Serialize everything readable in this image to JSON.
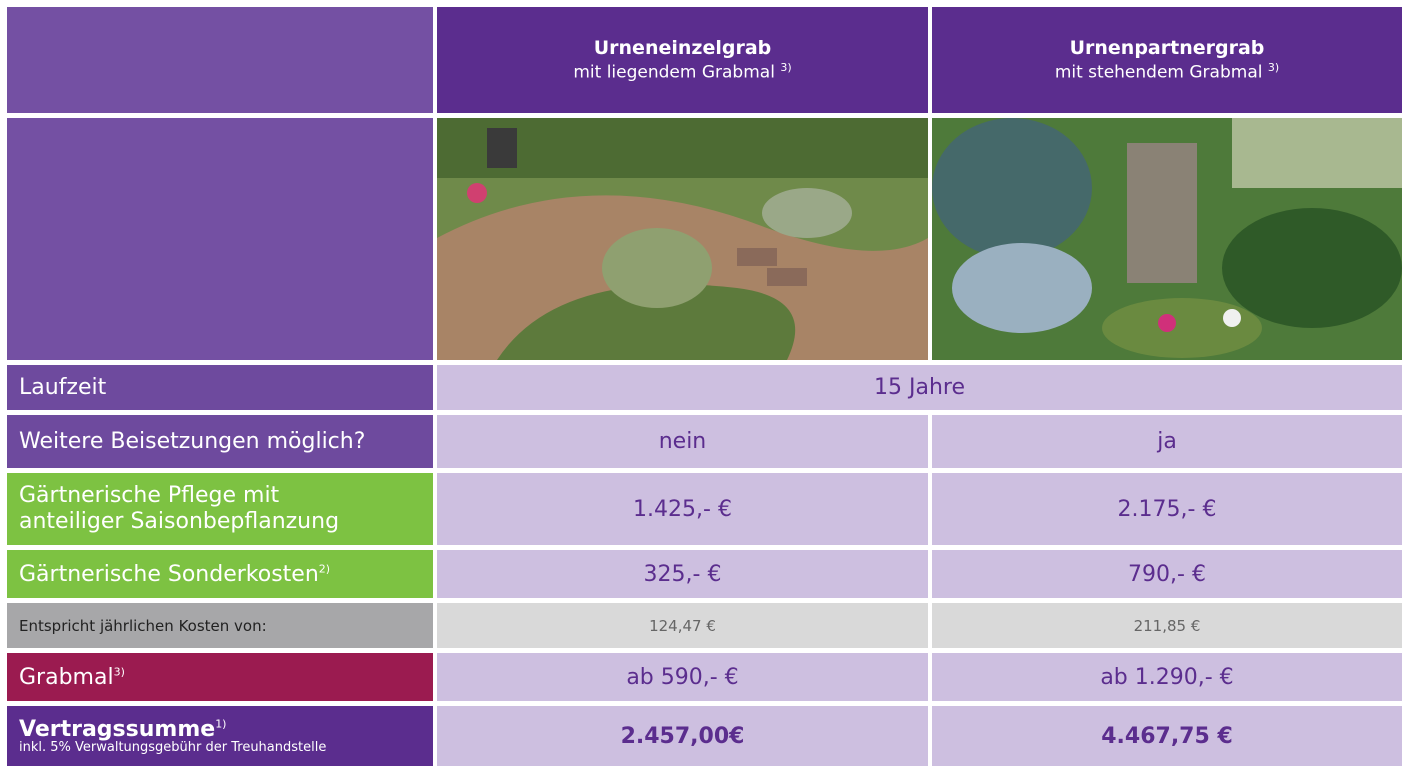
{
  "header": {
    "columns": [
      {
        "title": "Urneneinzelgrab",
        "subtitle": "mit liegendem Grabmal",
        "note": "3)"
      },
      {
        "title": "Urnenpartnergrab",
        "subtitle": "mit stehendem Grabmal",
        "note": "3)"
      }
    ]
  },
  "rows": [
    {
      "label": "Laufzeit",
      "value": "15 Jahre"
    },
    {
      "label": "Weitere Beisetzungen möglich?",
      "values": [
        "nein",
        "ja"
      ]
    },
    {
      "label": "Gärtnerische Pflege mit anteiliger Saisonbepflanzung",
      "values": [
        "1.425,- €",
        "2.175,- €"
      ]
    },
    {
      "label": "Gärtnerische Sonderkosten",
      "note": "2)",
      "values": [
        "325,- €",
        "790,- €"
      ]
    },
    {
      "label": "Entspricht jährlichen Kosten von:",
      "values": [
        "124,47 €",
        "211,85 €"
      ]
    },
    {
      "label": "Grabmal",
      "note": "3)",
      "values": [
        "ab 590,- €",
        "ab 1.290,- €"
      ]
    },
    {
      "label": "Vertragssumme",
      "note": "1)",
      "sublabel": "inkl. 5% Verwaltungsgebühr der Treuhandstelle",
      "values": [
        "2.457,00€",
        "4.467,75 €"
      ]
    }
  ]
}
